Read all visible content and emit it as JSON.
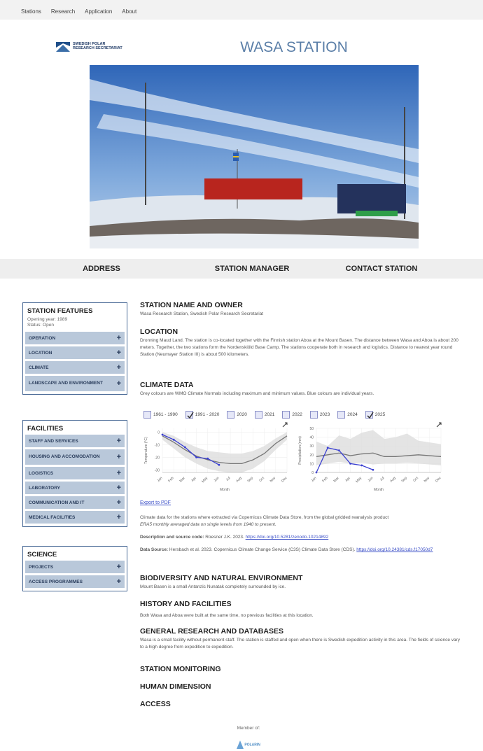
{
  "nav": [
    "Stations",
    "Research",
    "Application",
    "About"
  ],
  "logo": {
    "line1": "SWEDISH POLAR",
    "line2": "RESEARCH SECRETARIAT"
  },
  "title": "WASA STATION",
  "tabs": [
    "ADDRESS",
    "STATION MANAGER",
    "CONTACT STATION"
  ],
  "sidebar": {
    "expand": "+",
    "features": {
      "title": "STATION FEATURES",
      "facts": [
        "Opening year: 1989",
        "Status: Open"
      ],
      "items": [
        "OPERATION",
        "LOCATION",
        "CLIMATE",
        "LANDSCAPE AND ENVIRONMENT"
      ]
    },
    "facilities": {
      "title": "FACILITIES",
      "items": [
        "STAFF AND SERVICES",
        "HOUSING AND ACCOMODATION",
        "LOGISTICS",
        "LABORATORY",
        "COMMUNICATION AND IT",
        "MEDICAL FACILITIES"
      ]
    },
    "science": {
      "title": "SCIENCE",
      "items": [
        "PROJECTS",
        "ACCESS PROGRAMMES"
      ]
    }
  },
  "owner": {
    "heading": "STATION NAME AND OWNER",
    "text": "Wasa Research Station, Swedish Polar Research Secretariat"
  },
  "location": {
    "heading": "LOCATION",
    "text": "Dronning Maud Land. The station is co-located together with the Finnish station Aboa at the Mount Basen. The distance between Wasa and Aboa is about 200 meters. Together, the two stations form the Nordenskiöld Base Camp. The stations cooperate both in research and logistics. Distance to nearest year round Station (Neumayer Station III) is about 500 kilometers."
  },
  "climate": {
    "heading": "CLIMATE DATA",
    "text": "Grey colours are WMO Climate Normals including maximum and minimum values. Blue colours are individual years.",
    "periods": [
      {
        "label": "1961 - 1990",
        "checked": false
      },
      {
        "label": "1991 - 2020",
        "checked": true
      },
      {
        "label": "2020",
        "checked": false
      },
      {
        "label": "2021",
        "checked": false
      },
      {
        "label": "2022",
        "checked": false
      },
      {
        "label": "2023",
        "checked": false
      },
      {
        "label": "2024",
        "checked": false
      },
      {
        "label": "2025",
        "checked": true
      }
    ],
    "months": [
      "Jan",
      "Feb",
      "Mar",
      "Apr",
      "May",
      "Jun",
      "Jul",
      "Aug",
      "Sep",
      "Oct",
      "Nov",
      "Dec"
    ],
    "charts": [
      {
        "ylabel": "Temperature (°C)",
        "xlabel": "Month",
        "ylim": [
          -32,
          3
        ],
        "yticks": [
          0,
          -10,
          -20,
          -30
        ],
        "band_high": [
          0,
          -3,
          -8,
          -12,
          -15,
          -16,
          -17,
          -17,
          -15,
          -11,
          -5,
          0
        ],
        "band_low": [
          -6,
          -13,
          -20,
          -25,
          -29,
          -31,
          -32,
          -32,
          -29,
          -23,
          -14,
          -6
        ],
        "normal": {
          "color": "#777777",
          "values": [
            -3,
            -8,
            -14,
            -19,
            -22,
            -24,
            -25,
            -25,
            -22,
            -17,
            -9,
            -3
          ]
        },
        "year": {
          "color": "#3a3fd1",
          "values": [
            -2,
            -6,
            -12,
            -20,
            -21,
            -26,
            null,
            null,
            null,
            null,
            null,
            null
          ]
        }
      },
      {
        "ylabel": "Precipitation (mm)",
        "xlabel": "Month",
        "ylim": [
          0,
          50
        ],
        "yticks": [
          0,
          10,
          20,
          30,
          40,
          50
        ],
        "band_high": [
          35,
          30,
          42,
          38,
          45,
          48,
          38,
          40,
          44,
          36,
          34,
          32
        ],
        "band_low": [
          8,
          10,
          12,
          10,
          11,
          9,
          10,
          10,
          11,
          10,
          9,
          8
        ],
        "normal": {
          "color": "#777777",
          "values": [
            18,
            20,
            22,
            19,
            21,
            22,
            18,
            18,
            19,
            20,
            19,
            18
          ]
        },
        "year": {
          "color": "#3a3fd1",
          "values": [
            0,
            28,
            25,
            10,
            8,
            3,
            null,
            null,
            null,
            null,
            null,
            null
          ]
        }
      }
    ],
    "export": "Export to PDF",
    "note": "Climate data for the stations where extracted via Copernicus Climate Data Store, from the global gridded reanalysis product",
    "note_product": "ERA5 monthly averaged data on single levels from 1940 to present.",
    "desc_label": "Description and source code:",
    "desc_text": "Roesner J.K. 2023.",
    "desc_link": "https://doi.org/10.5281/zenodo.10214892",
    "source_label": "Data Source:",
    "source_text": "Hersbach et al. 2023. Copernicus Climate Change Service (C3S) Climate Data Store (CDS).",
    "source_link": "https://doi.org/10.24381/cds.f17050d7"
  },
  "biodiversity": {
    "heading": "BIODIVERSITY AND NATURAL ENVIRONMENT",
    "text": "Mount Basen is a small Antarctic Nunatak completely surrounded by ice."
  },
  "history": {
    "heading": "HISTORY AND FACILITIES",
    "text": "Both Wasa and Aboa were built at the same time, no previous facilities at this location."
  },
  "research": {
    "heading": "GENERAL RESEARCH AND DATABASES",
    "text": "Wasa is a small facility without permanent staff. The station is staffed and open when there is Swedish expedition activity in this area. The fields of science vary to a high degree from expedition to expedition."
  },
  "more": [
    "STATION MONITORING",
    "HUMAN DIMENSION",
    "ACCESS"
  ],
  "footer": {
    "member": "Member of:",
    "logo": "POLARIN"
  }
}
